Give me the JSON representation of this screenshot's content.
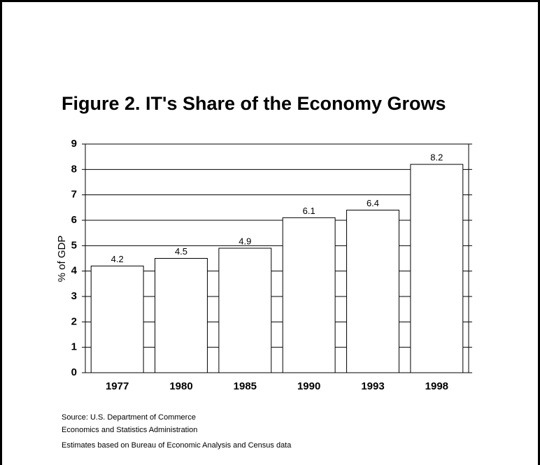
{
  "chart_data": {
    "type": "bar",
    "title": "Figure 2. IT's Share of the Economy Grows",
    "y_label": "% of GDP",
    "categories": [
      "1977",
      "1980",
      "1985",
      "1990",
      "1993",
      "1998"
    ],
    "values": [
      4.2,
      4.5,
      4.9,
      6.1,
      6.4,
      8.2
    ],
    "color": "#ffffff",
    "ylim": [
      0,
      9
    ],
    "yticks": [
      0,
      1,
      2,
      3,
      4,
      5,
      6,
      7,
      8,
      9
    ],
    "grid": true,
    "notes": [
      "Source: U.S. Department of Commerce",
      "Economics and Statistics Administration",
      "Estimates based on Bureau of Economic Analysis and Census data"
    ]
  }
}
